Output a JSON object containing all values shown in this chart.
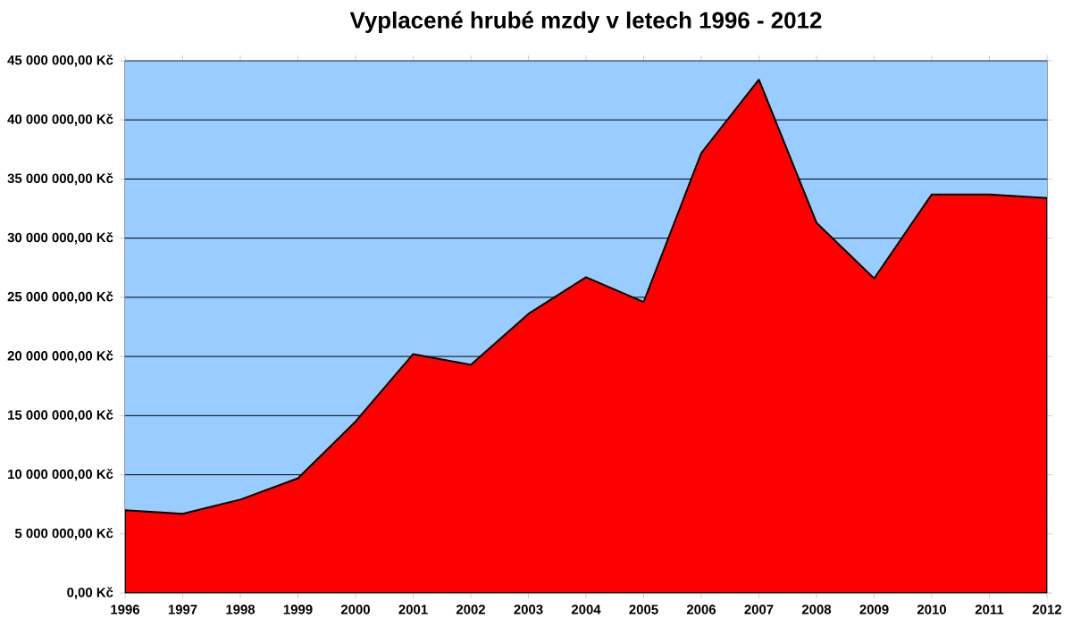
{
  "chart_data": {
    "type": "area",
    "title": "Vyplacené hrubé mzdy v letech 1996 - 2012",
    "categories": [
      "1996",
      "1997",
      "1998",
      "1999",
      "2000",
      "2001",
      "2002",
      "2003",
      "2004",
      "2005",
      "2006",
      "2007",
      "2008",
      "2009",
      "2010",
      "2011",
      "2012"
    ],
    "values": [
      7000000,
      6700000,
      7900000,
      9700000,
      14500000,
      20200000,
      19300000,
      23600000,
      26700000,
      24600000,
      37200000,
      43400000,
      31300000,
      26600000,
      33700000,
      33700000,
      33400000
    ],
    "color": "#ff0000",
    "ylim": [
      0,
      45000000
    ],
    "yticks": [
      {
        "value": 0,
        "label": "0,00 Kč"
      },
      {
        "value": 5000000,
        "label": "5 000 000,00 Kč"
      },
      {
        "value": 10000000,
        "label": "10 000 000,00 Kč"
      },
      {
        "value": 15000000,
        "label": "15 000 000,00 Kč"
      },
      {
        "value": 20000000,
        "label": "20 000 000,00 Kč"
      },
      {
        "value": 25000000,
        "label": "25 000 000,00 Kč"
      },
      {
        "value": 30000000,
        "label": "30 000 000,00 Kč"
      },
      {
        "value": 35000000,
        "label": "35 000 000,00 Kč"
      },
      {
        "value": 40000000,
        "label": "40 000 000,00 Kč"
      },
      {
        "value": 45000000,
        "label": "45 000 000,00 Kč"
      }
    ],
    "grid": "y",
    "bands": [
      {
        "axis": "y",
        "from": 0,
        "to": 45000000,
        "color": "#99ccff"
      }
    ]
  }
}
